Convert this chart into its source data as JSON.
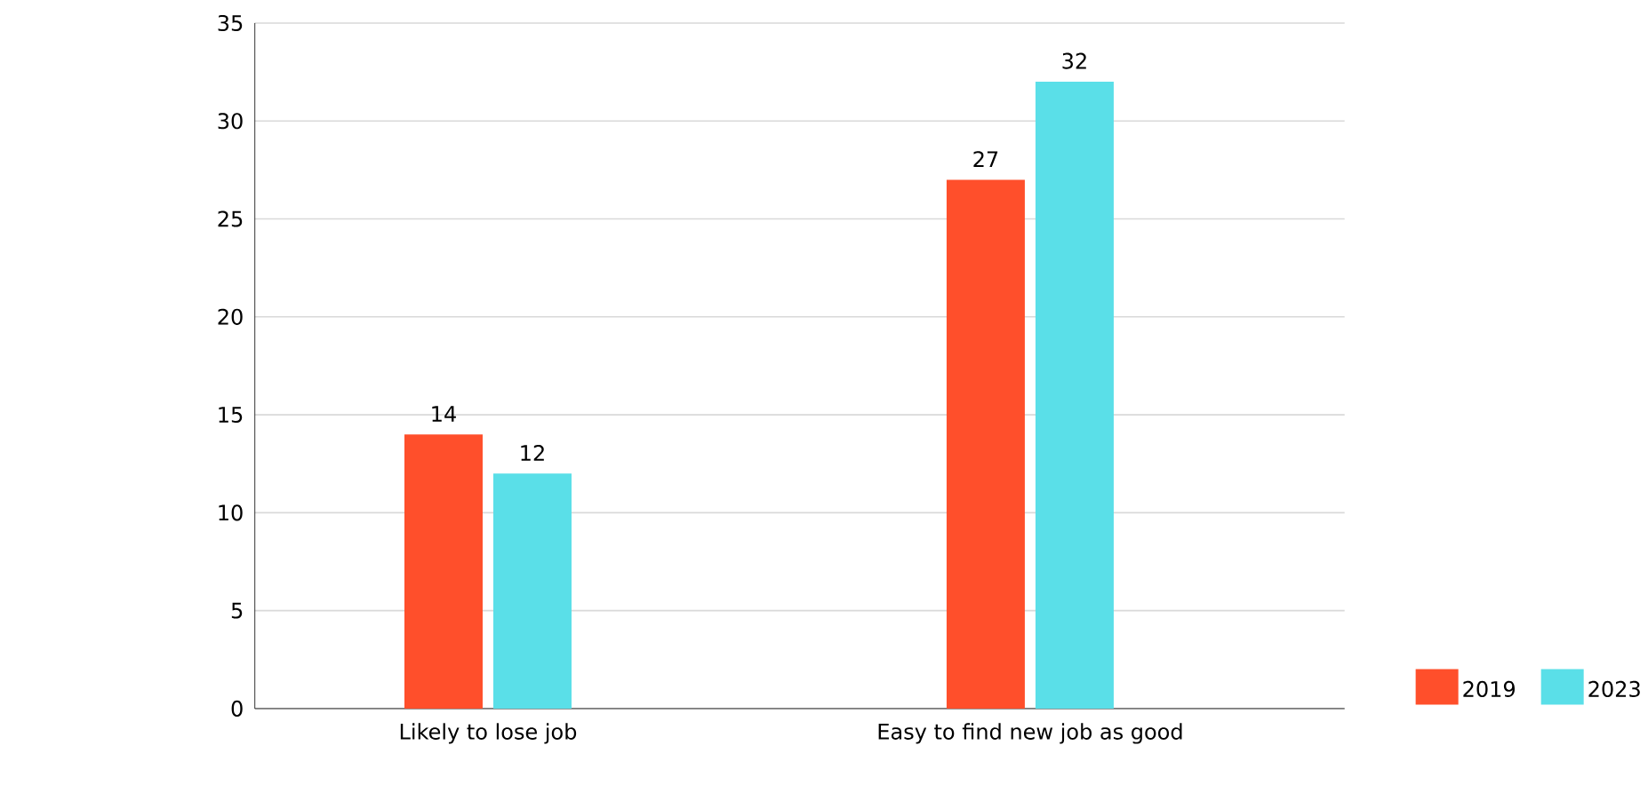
{
  "chart_data": {
    "type": "bar",
    "categories": [
      "Likely to lose job",
      "Easy to find new job as good"
    ],
    "series": [
      {
        "name": "2019",
        "color": "#ff4f2b",
        "values": [
          14,
          27
        ]
      },
      {
        "name": "2023",
        "color": "#5adfe8",
        "values": [
          12,
          32
        ]
      }
    ],
    "ylim": [
      0,
      35
    ],
    "yticks": [
      0,
      5,
      10,
      15,
      20,
      25,
      30,
      35
    ],
    "grid": "y",
    "legend": "bottom right",
    "data_labels": true
  }
}
